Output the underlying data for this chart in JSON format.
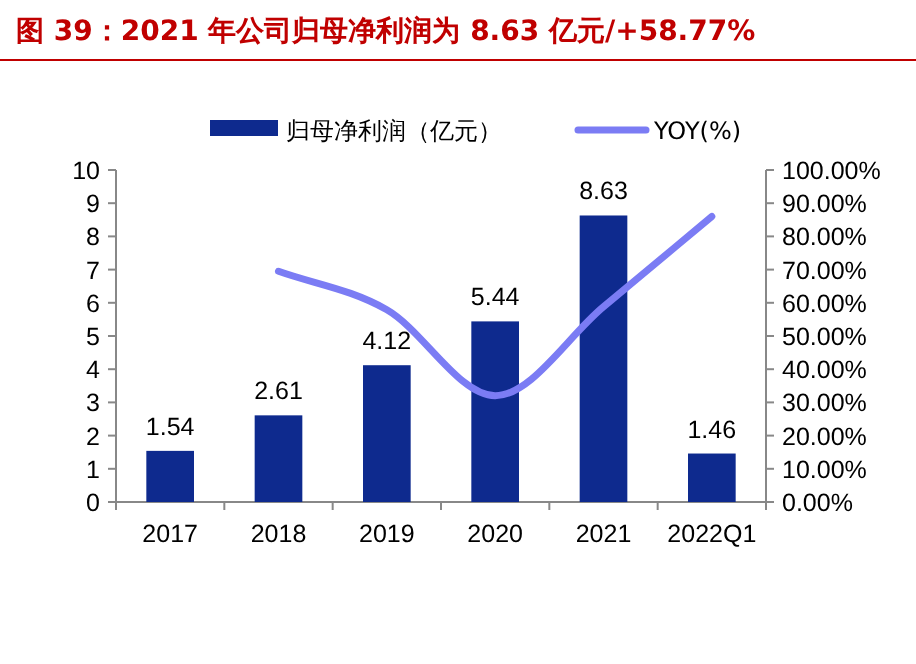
{
  "chart_data": {
    "type": "bar",
    "title": "图 39：2021 年公司归母净利润为 8.63 亿元/+58.77%",
    "categories": [
      "2017",
      "2018",
      "2019",
      "2020",
      "2021",
      "2022Q1"
    ],
    "series": [
      {
        "name": "归母净利润（亿元）",
        "color": "#0e2a8e",
        "values": [
          1.54,
          2.61,
          4.12,
          5.44,
          8.63,
          1.46
        ],
        "value_labels": [
          "1.54",
          "2.61",
          "4.12",
          "5.44",
          "8.63",
          "1.46"
        ]
      },
      {
        "name": "YOY(%)",
        "type": "line",
        "axis": "y2",
        "color": "#7b7cf4",
        "values": [
          null,
          69.5,
          57.9,
          32.0,
          58.8,
          86.0
        ]
      }
    ],
    "ylim": [
      0,
      10
    ],
    "yticks": [
      0,
      1,
      2,
      3,
      4,
      5,
      6,
      7,
      8,
      9,
      10
    ],
    "y2lim": [
      0,
      100
    ],
    "y2ticks": [
      {
        "value": 0,
        "label": "0.00%"
      },
      {
        "value": 10,
        "label": "10.00%"
      },
      {
        "value": 20,
        "label": "20.00%"
      },
      {
        "value": 30,
        "label": "30.00%"
      },
      {
        "value": 40,
        "label": "40.00%"
      },
      {
        "value": 50,
        "label": "50.00%"
      },
      {
        "value": 60,
        "label": "60.00%"
      },
      {
        "value": 70,
        "label": "70.00%"
      },
      {
        "value": 80,
        "label": "80.00%"
      },
      {
        "value": 90,
        "label": "90.00%"
      },
      {
        "value": 100,
        "label": "100.00%"
      }
    ],
    "legend": "top",
    "grid": false
  }
}
